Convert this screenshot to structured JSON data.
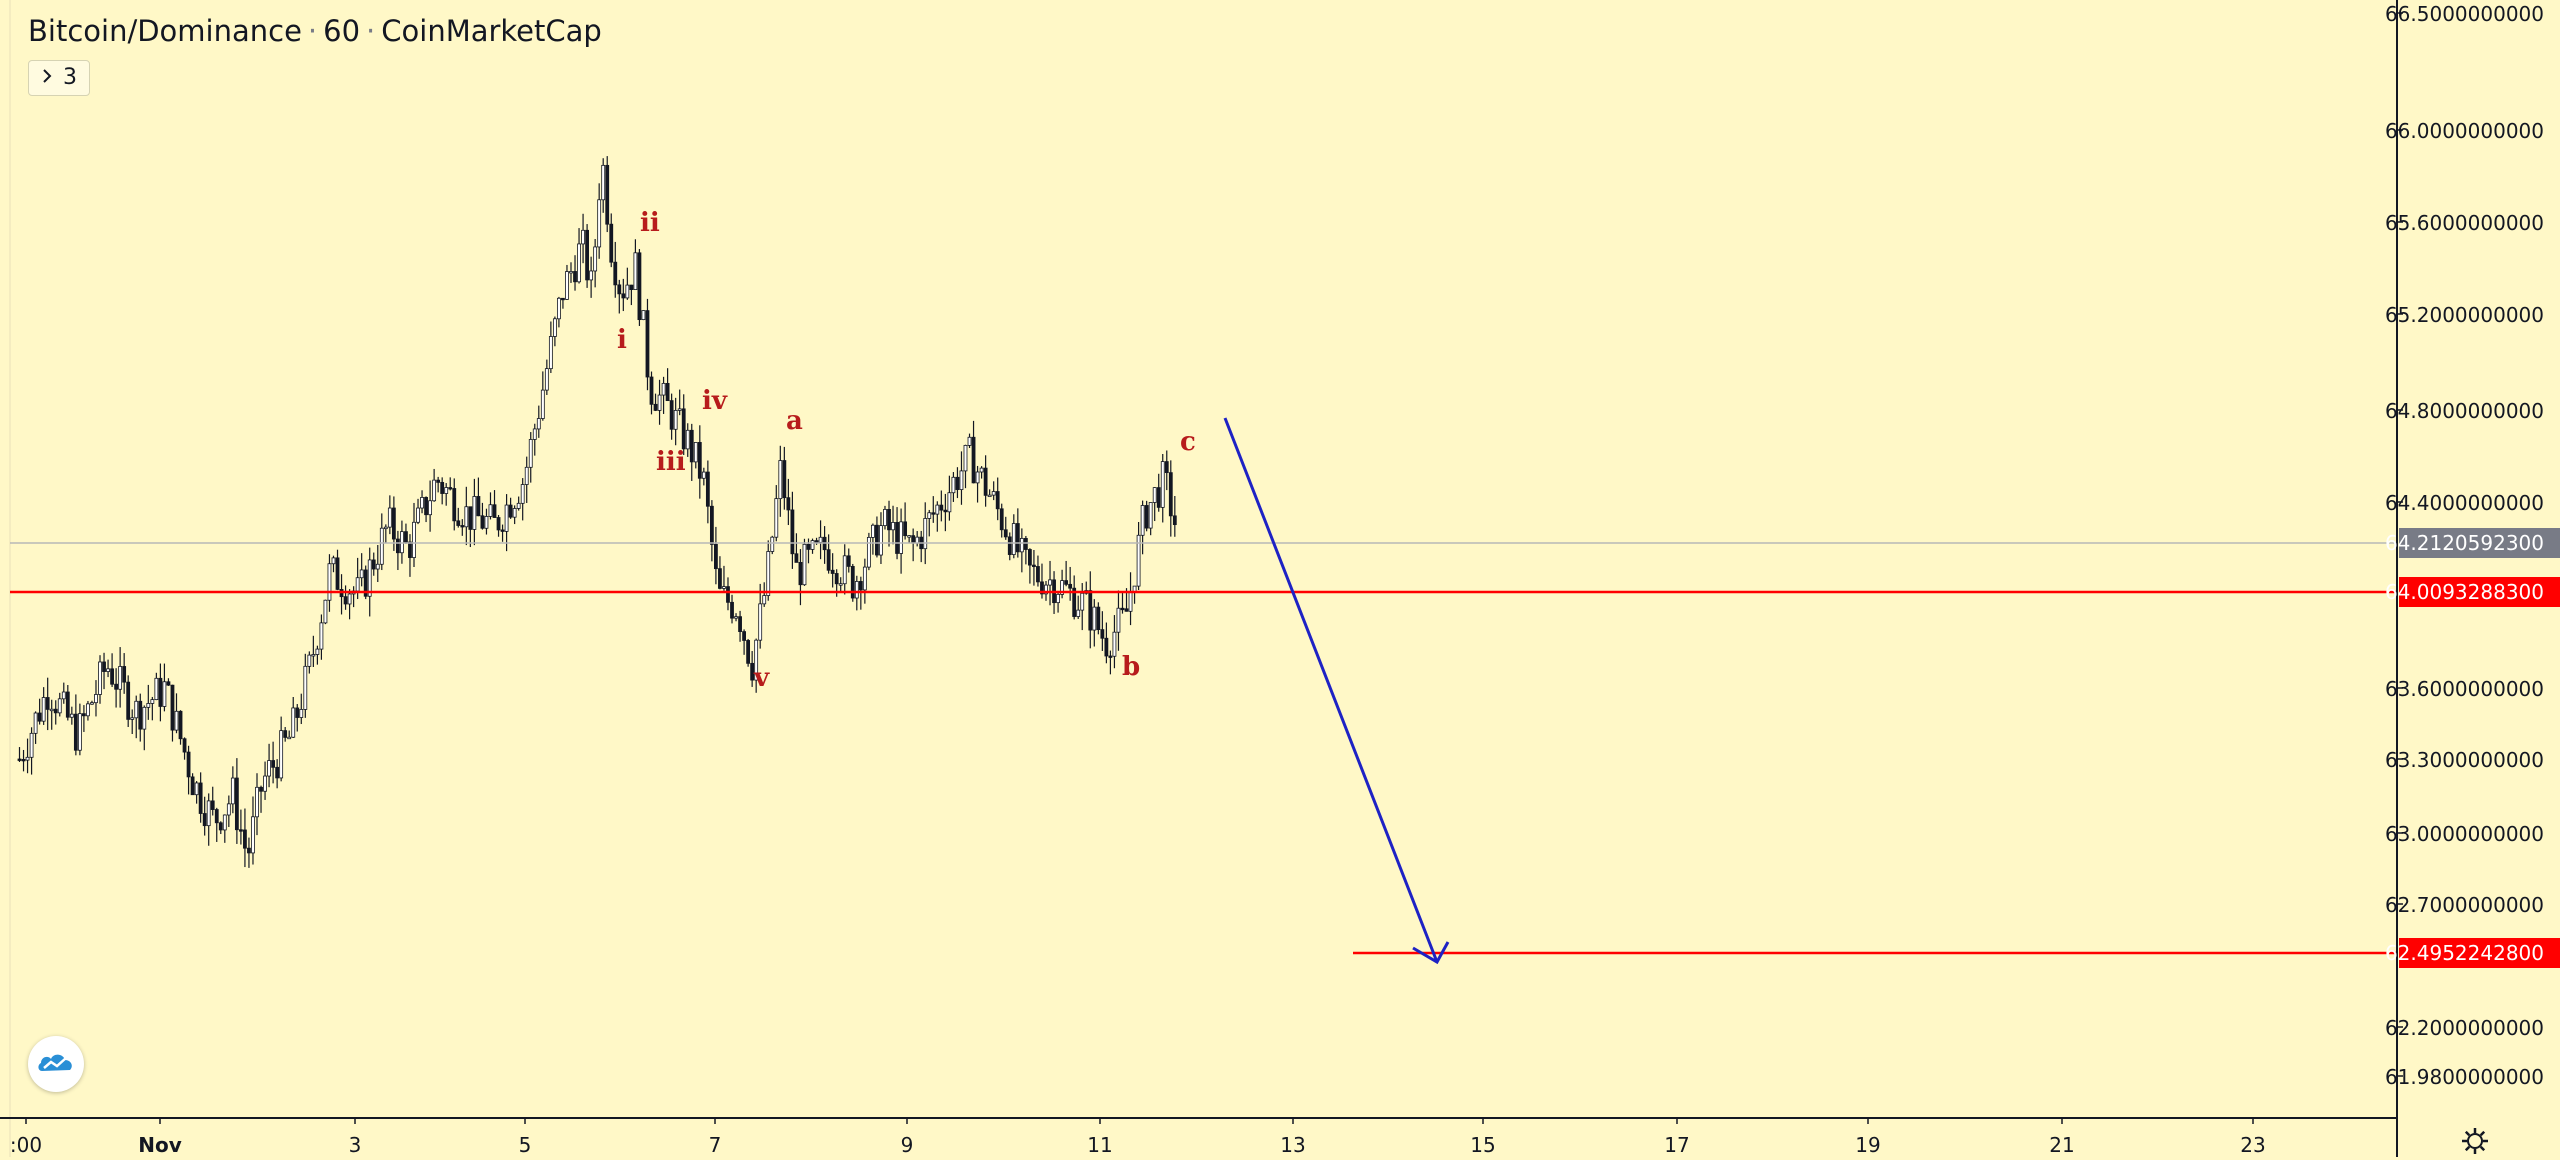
{
  "header": {
    "symbol": "Bitcoin/Dominance",
    "interval": "60",
    "source": "CoinMarketCap",
    "separator": "·",
    "indicators_toggle": {
      "icon": "chevron-right-icon",
      "count": "3"
    }
  },
  "colors": {
    "background": "#fff8c7",
    "up_candle": "#ffffff",
    "down_candle": "#131722",
    "level_line": "#ff0000",
    "arrow": "#1e22c4",
    "wave_label": "#b71c1c",
    "last_price_badge": "#787b86"
  },
  "chart_data": {
    "type": "candlestick",
    "x_axis": {
      "tick_labels": [
        ":00",
        "Nov",
        "3",
        "5",
        "7",
        "9",
        "11",
        "13",
        "15",
        "17",
        "19",
        "21",
        "23"
      ]
    },
    "y_axis": {
      "tick_labels": [
        "66.5000000000",
        "66.0000000000",
        "65.6000000000",
        "65.2000000000",
        "64.8000000000",
        "64.4000000000",
        "63.6000000000",
        "63.3000000000",
        "63.0000000000",
        "62.7000000000",
        "62.2000000000",
        "61.9800000000"
      ],
      "range": [
        61.9,
        66.5
      ]
    },
    "price_badges": [
      {
        "label": "64.2120592300",
        "style": "last"
      },
      {
        "label": "64.0093288300",
        "style": "level"
      },
      {
        "label": "62.4952242800",
        "style": "level"
      }
    ],
    "horizontal_levels": [
      64.00932883,
      62.49522428
    ],
    "wave_labels": [
      "i",
      "ii",
      "iii",
      "iv",
      "v",
      "a",
      "b",
      "c"
    ],
    "price_path": [
      [
        0.0,
        63.3
      ],
      [
        0.3,
        63.6
      ],
      [
        0.6,
        63.4
      ],
      [
        0.9,
        63.7
      ],
      [
        1.2,
        63.5
      ],
      [
        1.5,
        63.6
      ],
      [
        1.8,
        63.2
      ],
      [
        2.0,
        63.05
      ],
      [
        2.2,
        63.15
      ],
      [
        2.35,
        62.9
      ],
      [
        2.5,
        63.2
      ],
      [
        2.8,
        63.4
      ],
      [
        3.0,
        63.7
      ],
      [
        3.2,
        64.1
      ],
      [
        3.5,
        64.0
      ],
      [
        3.8,
        64.3
      ],
      [
        4.0,
        64.2
      ],
      [
        4.3,
        64.5
      ],
      [
        4.6,
        64.35
      ],
      [
        4.9,
        64.3
      ],
      [
        5.2,
        64.5
      ],
      [
        5.4,
        64.9
      ],
      [
        5.6,
        65.3
      ],
      [
        5.8,
        65.5
      ],
      [
        5.9,
        65.3
      ],
      [
        6.0,
        65.9
      ],
      [
        6.1,
        65.5
      ],
      [
        6.2,
        65.3
      ],
      [
        6.35,
        65.4
      ],
      [
        6.5,
        64.9
      ],
      [
        6.7,
        64.8
      ],
      [
        6.9,
        64.65
      ],
      [
        7.05,
        64.5
      ],
      [
        7.2,
        64.0
      ],
      [
        7.4,
        63.95
      ],
      [
        7.55,
        63.7
      ],
      [
        7.7,
        64.05
      ],
      [
        7.85,
        64.55
      ],
      [
        8.0,
        64.1
      ],
      [
        8.3,
        64.2
      ],
      [
        8.6,
        64.05
      ],
      [
        8.9,
        64.3
      ],
      [
        9.2,
        64.2
      ],
      [
        9.5,
        64.4
      ],
      [
        9.8,
        64.6
      ],
      [
        10.1,
        64.35
      ],
      [
        10.4,
        64.1
      ],
      [
        10.7,
        64.05
      ],
      [
        11.0,
        63.95
      ],
      [
        11.2,
        63.8
      ],
      [
        11.4,
        63.9
      ],
      [
        11.6,
        64.35
      ],
      [
        11.8,
        64.5
      ],
      [
        11.95,
        64.25
      ]
    ]
  }
}
